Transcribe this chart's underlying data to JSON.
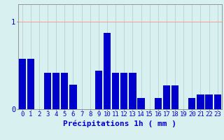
{
  "categories": [
    0,
    1,
    2,
    3,
    4,
    5,
    6,
    7,
    8,
    9,
    10,
    11,
    12,
    13,
    14,
    15,
    16,
    17,
    18,
    19,
    20,
    21,
    22,
    23
  ],
  "values": [
    0.58,
    0.58,
    0.0,
    0.42,
    0.42,
    0.42,
    0.28,
    0.0,
    0.0,
    0.44,
    0.87,
    0.42,
    0.42,
    0.42,
    0.13,
    0.0,
    0.13,
    0.27,
    0.27,
    0.0,
    0.13,
    0.17,
    0.17,
    0.17
  ],
  "bar_color": "#0000cc",
  "background_color": "#d8f0f0",
  "hgrid_color": "#ff9999",
  "vgrid_color": "#b8d8d8",
  "text_color": "#0000cc",
  "xlabel": "Précipitations 1h ( mm )",
  "yticks": [
    0,
    1
  ],
  "ylim": [
    0,
    1.2
  ],
  "xlim": [
    -0.5,
    23.5
  ],
  "xlabel_fontsize": 8,
  "tick_fontsize": 6.5
}
